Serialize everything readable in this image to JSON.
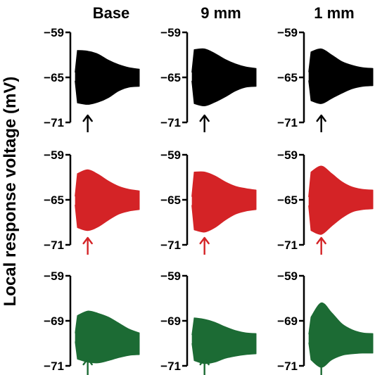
{
  "figure": {
    "y_axis_label": "Local response voltage (mV)",
    "columns": [
      "Base",
      "9 mm",
      "1 mm"
    ]
  },
  "chart_data": {
    "type": "area",
    "description_of_marks": "envelope of a dense oscillating voltage trace per panel; arrow marks the time of the largest envelope",
    "rows": [
      {
        "color": "#000000",
        "yticks": [
          "−59",
          "−65",
          "−71"
        ],
        "ylim": [
          -71,
          -59
        ],
        "panels": [
          {
            "column": "Base",
            "envelope_upper": [
              -61.4,
              -61.5,
              -61.9,
              -62.7,
              -63.3,
              -63.7,
              -63.9
            ],
            "envelope_lower": [
              -68.4,
              -68.6,
              -68.3,
              -67.7,
              -66.8,
              -66.3,
              -66.2
            ]
          },
          {
            "column": "9 mm",
            "envelope_upper": [
              -61.3,
              -61.2,
              -61.8,
              -62.6,
              -63.2,
              -63.6,
              -63.8
            ],
            "envelope_lower": [
              -68.5,
              -68.8,
              -68.3,
              -67.6,
              -66.8,
              -66.3,
              -66.2
            ]
          },
          {
            "column": "1 mm",
            "envelope_upper": [
              -61.6,
              -61.2,
              -62.0,
              -62.9,
              -63.4,
              -63.7,
              -63.8
            ],
            "envelope_lower": [
              -68.1,
              -68.5,
              -67.8,
              -67.1,
              -66.5,
              -66.2,
              -66.1
            ]
          }
        ]
      },
      {
        "color": "#d42326",
        "yticks": [
          "−59",
          "−65",
          "−71"
        ],
        "ylim": [
          -71,
          -59
        ],
        "panels": [
          {
            "column": "Base",
            "envelope_upper": [
              -61.5,
              -61.0,
              -61.6,
              -62.5,
              -63.2,
              -63.6,
              -63.8
            ],
            "envelope_lower": [
              -68.7,
              -69.1,
              -68.6,
              -67.7,
              -66.9,
              -66.5,
              -66.3
            ]
          },
          {
            "column": "9 mm",
            "envelope_upper": [
              -61.3,
              -61.3,
              -61.8,
              -62.6,
              -63.2,
              -63.5,
              -63.7
            ],
            "envelope_lower": [
              -69.0,
              -69.3,
              -68.7,
              -67.7,
              -66.9,
              -66.5,
              -66.3
            ]
          },
          {
            "column": "1 mm",
            "envelope_upper": [
              -61.3,
              -60.5,
              -61.5,
              -62.6,
              -63.3,
              -63.6,
              -63.7
            ],
            "envelope_lower": [
              -69.1,
              -69.6,
              -68.5,
              -67.4,
              -66.6,
              -66.3,
              -66.2
            ]
          }
        ]
      },
      {
        "color": "#1c6b34",
        "yticks": [
          "−59",
          "−69",
          "−71"
        ],
        "ylim": [
          -71,
          -59
        ],
        "panels": [
          {
            "column": "Base",
            "envelope_upper": [
              -64.3,
              -63.7,
              -64.0,
              -64.5,
              -65.3,
              -66.1,
              -66.6
            ],
            "envelope_lower": [
              -70.1,
              -70.5,
              -70.6,
              -70.3,
              -69.9,
              -69.6,
              -69.5
            ]
          },
          {
            "column": "9 mm",
            "envelope_upper": [
              -64.6,
              -64.8,
              -65.2,
              -65.8,
              -66.3,
              -66.6,
              -66.7
            ],
            "envelope_lower": [
              -70.3,
              -70.7,
              -70.5,
              -70.0,
              -69.7,
              -69.5,
              -69.4
            ]
          },
          {
            "column": "1 mm",
            "envelope_upper": [
              -64.5,
              -62.6,
              -63.9,
              -65.4,
              -66.2,
              -66.6,
              -66.7
            ],
            "envelope_lower": [
              -70.2,
              -71.2,
              -70.2,
              -69.6,
              -69.4,
              -69.3,
              -69.3
            ]
          }
        ]
      }
    ]
  }
}
